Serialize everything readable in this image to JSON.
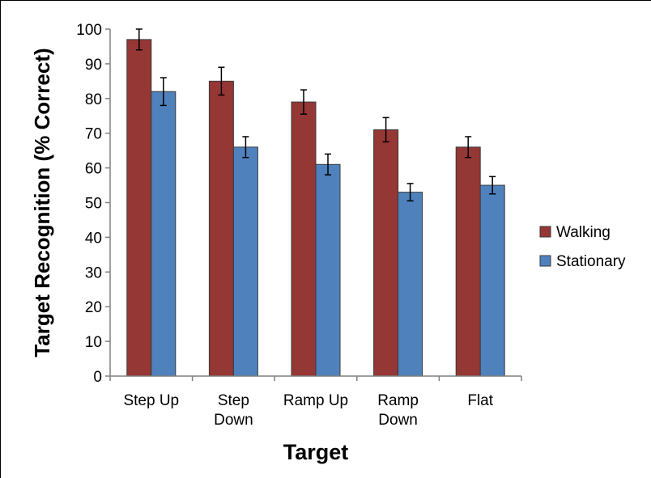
{
  "chart_data": {
    "type": "bar",
    "title": "",
    "xlabel": "Target",
    "ylabel": "Target Recognition (% Correct)",
    "ylim": [
      0,
      100
    ],
    "ytick_step": 10,
    "grid": false,
    "legend_position": "right",
    "categories": [
      [
        "Step Up"
      ],
      [
        "Step",
        "Down"
      ],
      [
        "Ramp Up"
      ],
      [
        "Ramp",
        "Down"
      ],
      [
        "Flat"
      ]
    ],
    "series": [
      {
        "name": "Walking",
        "color": "#953735",
        "values": [
          97,
          85,
          79,
          71,
          66
        ],
        "errors": [
          3,
          4,
          3.5,
          3.5,
          3
        ]
      },
      {
        "name": "Stationary",
        "color": "#4f81bd",
        "values": [
          82,
          66,
          61,
          53,
          55
        ],
        "errors": [
          4,
          3,
          3,
          2.5,
          2.5
        ]
      }
    ]
  }
}
